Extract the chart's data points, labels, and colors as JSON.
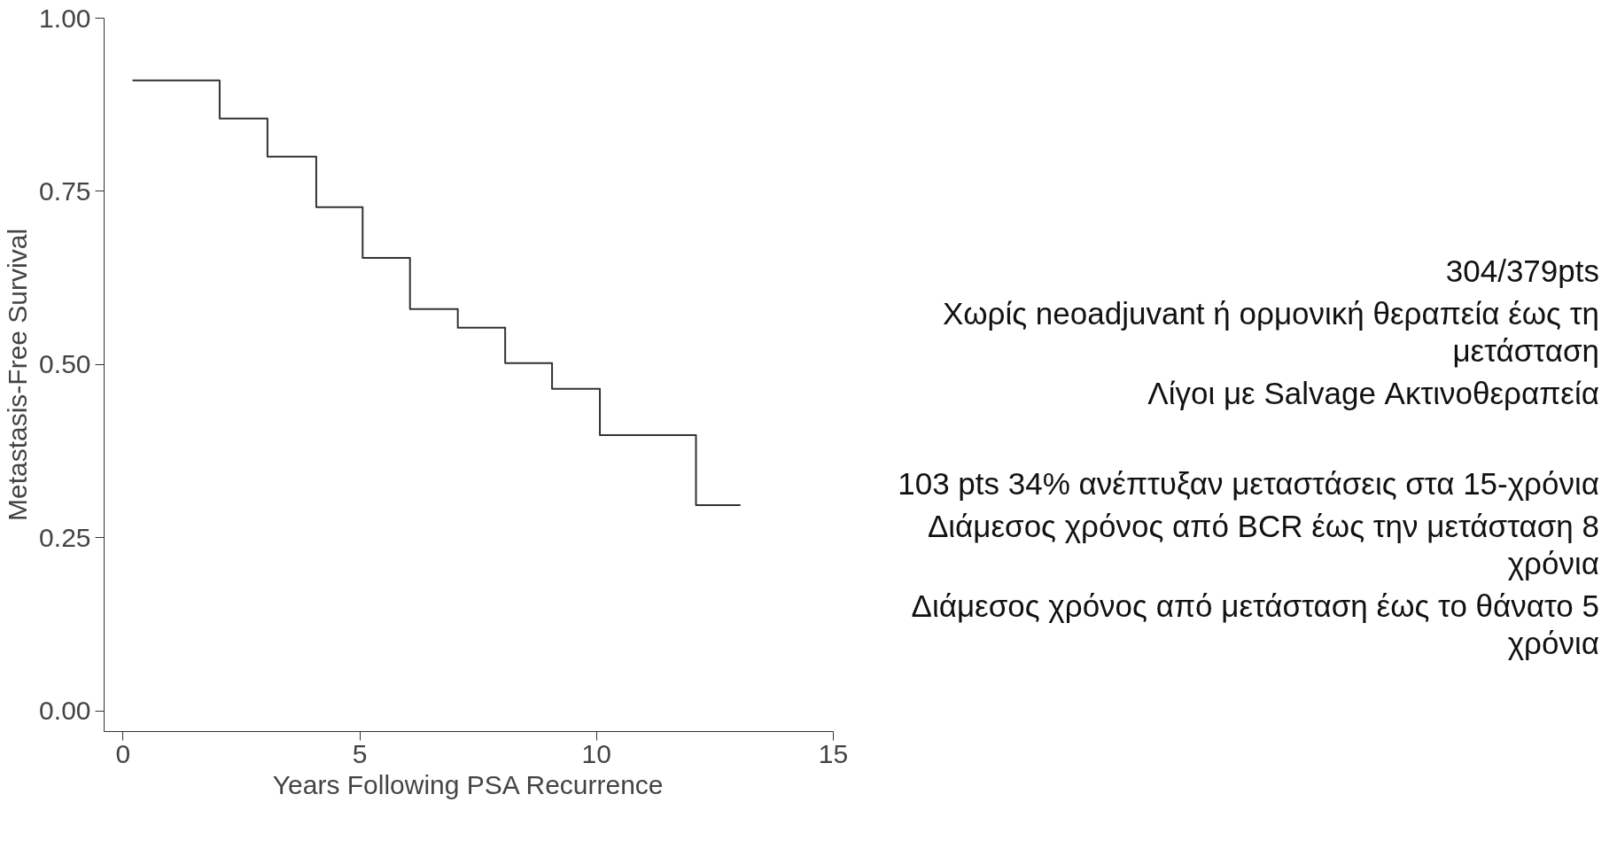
{
  "chart_data": {
    "type": "step",
    "xlabel": "Years Following PSA Recurrence",
    "ylabel": "Metastasis-Free Survival",
    "x": [
      0.2,
      2.04,
      3.05,
      4.08,
      5.06,
      6.06,
      7.07,
      8.07,
      9.06,
      10.07,
      12.1,
      13.04
    ],
    "series": [
      {
        "color": "#333333",
        "values": [
          0.91,
          0.855,
          0.8,
          0.727,
          0.654,
          0.58,
          0.553,
          0.502,
          0.465,
          0.398,
          0.297,
          0.297
        ]
      }
    ],
    "xlim": [
      -0.4,
      15
    ],
    "ylim": [
      -0.03,
      1.0
    ],
    "xticks": [
      0,
      5,
      10,
      15
    ],
    "yticks": [
      {
        "value": 0,
        "label": "0.00"
      },
      {
        "value": 0.25,
        "label": "0.25"
      },
      {
        "value": 0.5,
        "label": "0.50"
      },
      {
        "value": 0.75,
        "label": "0.75"
      },
      {
        "value": 1,
        "label": "1.00"
      }
    ],
    "grid": false,
    "marker": "none",
    "line_style": "solid",
    "annotations": [
      "304/379pts",
      "Χωρίς neoadjuvant ή ορμονική θεραπεία έως τη μετάσταση",
      "Λίγοι με Salvage Ακτινοθεραπεία",
      "103 pts 34% ανέπτυξαν μεταστάσεις στα 15-χρόνια",
      "Διάμεσος χρόνος από BCR έως την μετάσταση 8 χρόνια",
      "Διάμεσος χρόνος από μετάσταση έως το θάνατο 5 χρόνια"
    ]
  }
}
